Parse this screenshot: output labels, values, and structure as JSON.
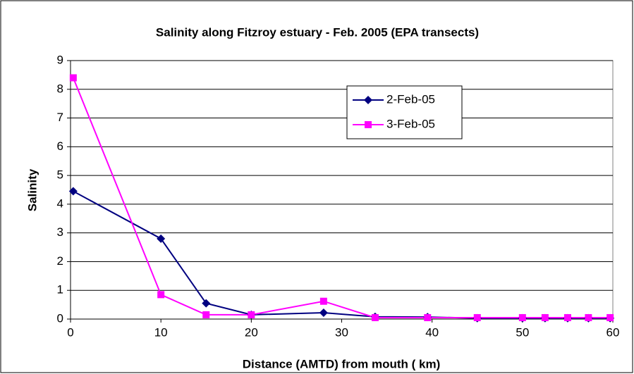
{
  "chart_data": {
    "type": "line",
    "title": "Salinity along Fitzroy estuary - Feb. 2005 (EPA transects)",
    "xlabel": "Distance (AMTD) from mouth ( km)",
    "ylabel": "Salinity",
    "xlim": [
      0,
      60
    ],
    "xticks": [
      0,
      10,
      20,
      30,
      40,
      50,
      60
    ],
    "ylim": [
      0,
      9
    ],
    "yticks": [
      0,
      1,
      2,
      3,
      4,
      5,
      6,
      7,
      8,
      9
    ],
    "grid": true,
    "legend": "upper-right",
    "series": [
      {
        "name": "2-Feb-05",
        "color": "#000080",
        "marker": "diamond",
        "x": [
          0.3,
          10,
          15,
          20,
          28,
          33.7,
          39.5,
          45,
          50,
          52.5,
          55,
          57.3,
          59.7
        ],
        "values": [
          4.45,
          2.8,
          0.55,
          0.15,
          0.22,
          0.08,
          0.07,
          0.03,
          0.03,
          0.03,
          0.03,
          0.03,
          0.03
        ]
      },
      {
        "name": "3-Feb-05",
        "color": "#FF00FF",
        "marker": "square",
        "x": [
          0.3,
          10,
          15,
          20,
          28,
          33.7,
          39.5,
          45,
          50,
          52.5,
          55,
          57.3,
          59.7
        ],
        "values": [
          8.4,
          0.85,
          0.15,
          0.15,
          0.62,
          0.05,
          0.05,
          0.05,
          0.05,
          0.05,
          0.05,
          0.05,
          0.05
        ]
      }
    ]
  }
}
